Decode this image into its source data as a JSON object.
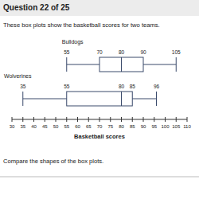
{
  "chart_data": {
    "type": "box",
    "title": "Question 22 of 25",
    "subtitle": "These box plots show the basketball scores for two teams.",
    "xlabel": "Basketball scores",
    "annotations": [
      "Compare the shapes of the box plots."
    ],
    "series": [
      {
        "name": "Bulldogs",
        "values": [
          55,
          70,
          80,
          90,
          105
        ]
      },
      {
        "name": "Wolverines",
        "values": [
          35,
          55,
          80,
          85,
          96
        ]
      }
    ],
    "xlim": [
      30,
      110
    ],
    "xticks": [
      30,
      35,
      40,
      45,
      50,
      55,
      60,
      65,
      70,
      75,
      80,
      85,
      90,
      95,
      100,
      105,
      110
    ],
    "data_labels": true,
    "color": "#3a4a6b"
  }
}
